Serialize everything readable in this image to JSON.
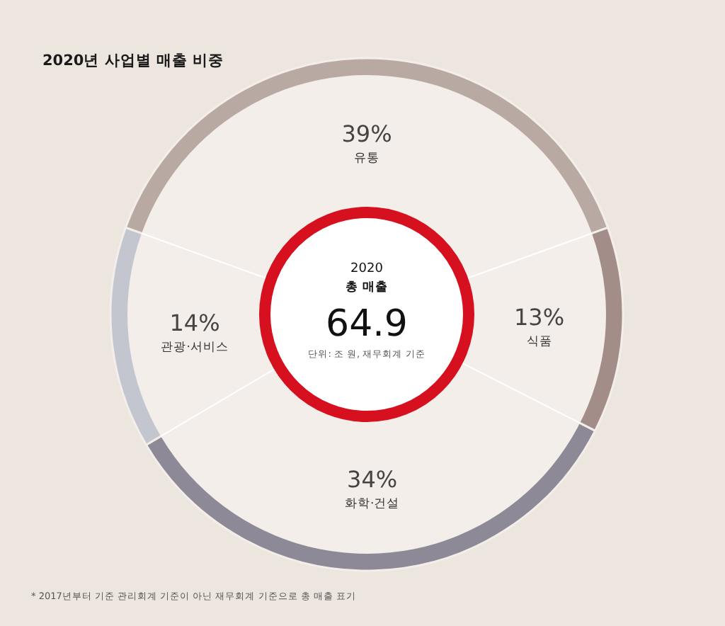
{
  "chart_data": {
    "type": "donut",
    "title": "2020년 사업별 매출 비중",
    "categories": [
      "유통",
      "식품",
      "화학·건설",
      "관광·서비스"
    ],
    "values": [
      39,
      13,
      34,
      14
    ],
    "colors": [
      "#b9a9a3",
      "#a38d88",
      "#8d8996",
      "#c3c6ce"
    ],
    "data_labels": true,
    "value_labels": [
      "39%",
      "13%",
      "34%",
      "14%"
    ],
    "annotations": [
      "2020",
      "총 매출",
      "64.9",
      "단위: 조 원, 재무회계 기준",
      "* 2017년부터 기준 관리회계 기준이 아닌 재무회계 기준으로 총 매출 표기"
    ]
  }
}
